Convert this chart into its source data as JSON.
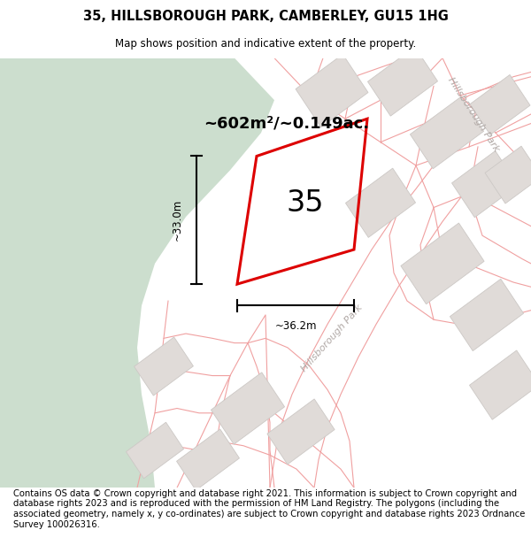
{
  "title": "35, HILLSBOROUGH PARK, CAMBERLEY, GU15 1HG",
  "subtitle": "Map shows position and indicative extent of the property.",
  "footer": "Contains OS data © Crown copyright and database right 2021. This information is subject to Crown copyright and database rights 2023 and is reproduced with the permission of HM Land Registry. The polygons (including the associated geometry, namely x, y co-ordinates) are subject to Crown copyright and database rights 2023 Ordnance Survey 100026316.",
  "area_text": "~602m²/~0.149ac.",
  "width_label": "~36.2m",
  "height_label": "~33.0m",
  "plot_number": "35",
  "map_bg": "#f2eeeb",
  "green_color": "#ccdece",
  "green2_color": "#dde8dc",
  "road_bg": "#f7f3f0",
  "plot_line_color": "#dd0000",
  "parcel_line_color": "#f0a0a0",
  "block_color": "#e0dbd8",
  "block_edge_color": "#ccc8c5",
  "title_fontsize": 10.5,
  "subtitle_fontsize": 8.5,
  "footer_fontsize": 7.2,
  "area_fontsize": 13,
  "number_fontsize": 24,
  "label_fontsize": 8.5
}
